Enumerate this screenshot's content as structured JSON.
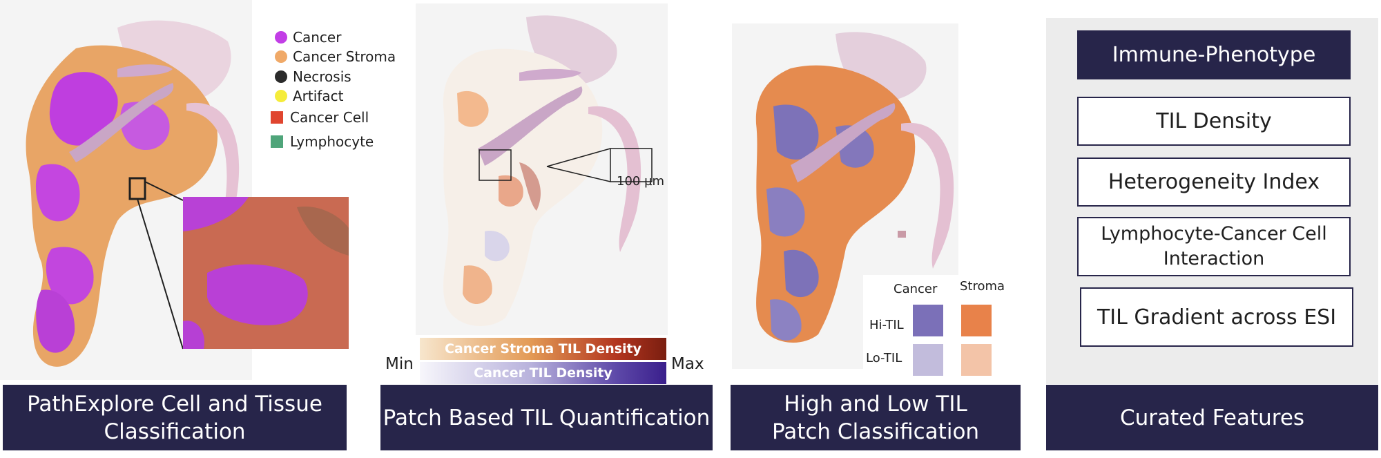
{
  "panel1": {
    "legend": [
      {
        "label": "Cancer",
        "color": "#c23ee6",
        "shape": "dot"
      },
      {
        "label": "Cancer Stroma",
        "color": "#f0a968",
        "shape": "dot"
      },
      {
        "label": "Necrosis",
        "color": "#2b2b2b",
        "shape": "dot"
      },
      {
        "label": "Artifact",
        "color": "#f5ec3a",
        "shape": "dot"
      },
      {
        "label": "Cancer Cell",
        "color": "#e0452f",
        "shape": "square"
      },
      {
        "label": "Lymphocyte",
        "color": "#4fa57a",
        "shape": "square"
      }
    ],
    "banner": "PathExplore Cell and Tissue Classification"
  },
  "panel2": {
    "scale_label": "100 µm",
    "stroma_bar": "Cancer Stroma TIL Density",
    "cancer_bar": "Cancer TIL Density",
    "min_label": "Min",
    "max_label": "Max",
    "banner": "Patch Based TIL Quantification"
  },
  "panel3": {
    "col_cancer": "Cancer",
    "col_stroma": "Stroma",
    "row_hi": "Hi-TIL",
    "row_lo": "Lo-TIL",
    "colors": {
      "hi_cancer": "#7b70b8",
      "hi_stroma": "#e8824a",
      "lo_cancer": "#c2bcdc",
      "lo_stroma": "#f3c4a8"
    },
    "banner": "High and Low TIL Patch Classification"
  },
  "panel4": {
    "features": [
      "Immune-Phenotype",
      "TIL Density",
      "Heterogeneity Index",
      "Lymphocyte-Cancer Cell Interaction",
      "TIL Gradient across ESI"
    ],
    "banner": "Curated Features"
  },
  "colors": {
    "banner_bg": "#27254a",
    "panel_gray": "#ececec"
  }
}
